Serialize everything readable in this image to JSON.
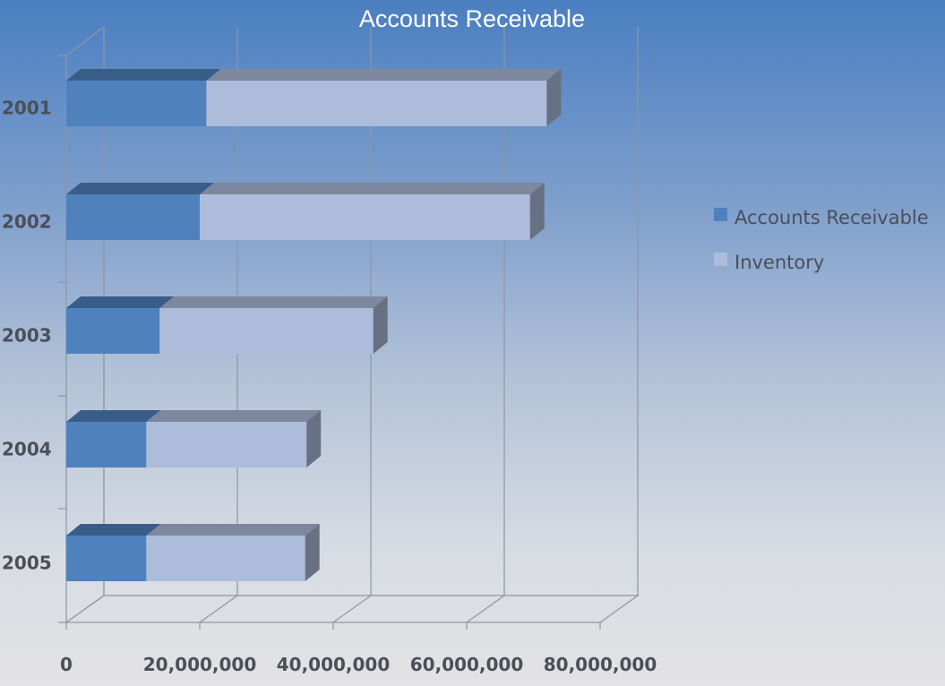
{
  "chart_data": {
    "type": "bar",
    "orientation": "horizontal",
    "stacked": true,
    "three_d": true,
    "title": "Accounts Receivable",
    "categories": [
      "2001",
      "2002",
      "2003",
      "2004",
      "2005"
    ],
    "series": [
      {
        "name": "Accounts Receivable",
        "values": [
          21000000,
          20000000,
          14000000,
          12000000,
          12000000
        ],
        "color": "#4f81bd"
      },
      {
        "name": "Inventory",
        "values": [
          51000000,
          49500000,
          32000000,
          24000000,
          23800000
        ],
        "color": "#aebcdc"
      }
    ],
    "x_ticks": [
      "0",
      "20,000,000",
      "40,000,000",
      "60,000,000",
      "80,000,000"
    ],
    "xlim": [
      0,
      80000000
    ],
    "grid": true,
    "legend_position": "right"
  }
}
